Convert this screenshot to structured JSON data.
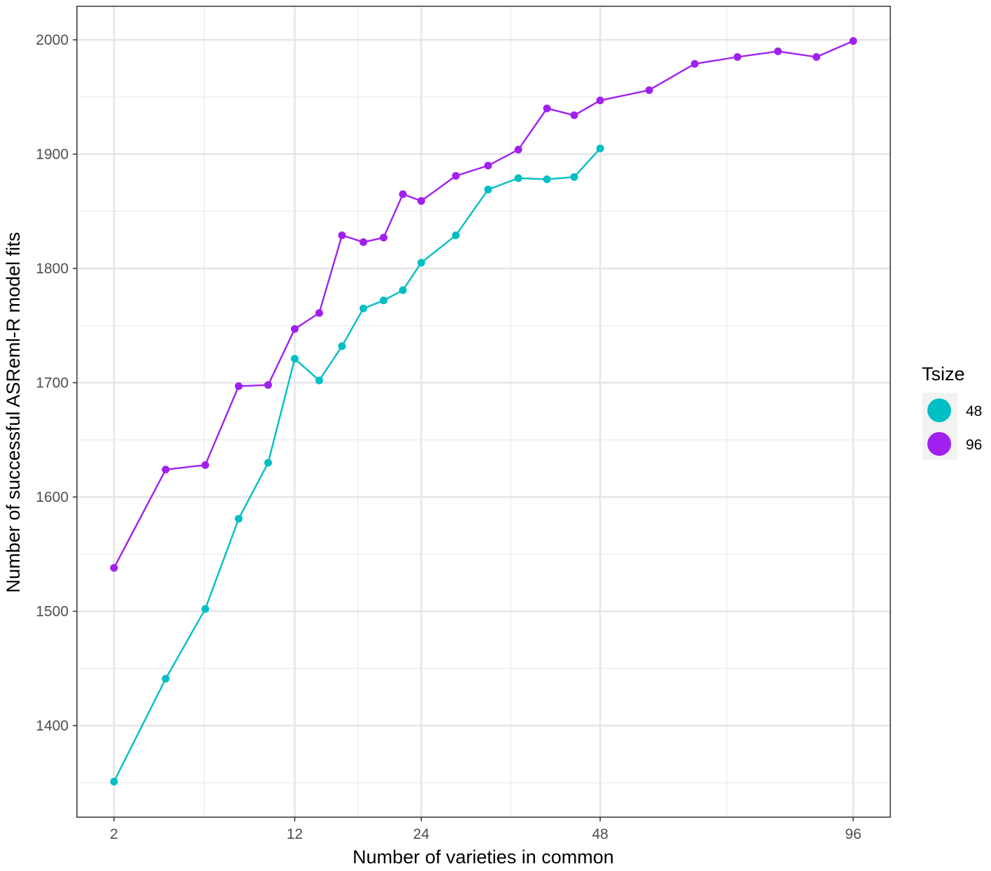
{
  "chart_data": {
    "type": "line",
    "title": "",
    "xlabel": "Number of varieties in common",
    "ylabel": "Number of successful ASReml-R model fits",
    "x_scale": "sqrt",
    "xlim": [
      2,
      96
    ],
    "ylim": [
      1350,
      2000
    ],
    "x_ticks": [
      2,
      12,
      24,
      48,
      96
    ],
    "x_tick_labels": [
      "2",
      "12",
      "24",
      "48",
      "96"
    ],
    "y_ticks": [
      1400,
      1500,
      1600,
      1700,
      1800,
      1900,
      2000
    ],
    "y_tick_labels": [
      "1400",
      "1500",
      "1600",
      "1700",
      "1800",
      "1900",
      "2000"
    ],
    "grid": true,
    "legend": {
      "title": "Tsize",
      "position": "right"
    },
    "series": [
      {
        "name": "48",
        "color": "#00BFC4",
        "x": [
          2,
          4,
          6,
          8,
          10,
          12,
          14,
          16,
          18,
          20,
          22,
          24,
          28,
          32,
          36,
          40,
          44,
          48
        ],
        "y": [
          1351,
          1441,
          1502,
          1581,
          1630,
          1721,
          1702,
          1732,
          1765,
          1772,
          1781,
          1805,
          1829,
          1869,
          1879,
          1878,
          1880,
          1905
        ]
      },
      {
        "name": "96",
        "color": "#A020F0",
        "x": [
          2,
          4,
          6,
          8,
          10,
          12,
          14,
          16,
          18,
          20,
          22,
          24,
          28,
          32,
          36,
          40,
          44,
          48,
          56,
          64,
          72,
          80,
          88,
          96
        ],
        "y": [
          1538,
          1624,
          1628,
          1697,
          1698,
          1747,
          1761,
          1829,
          1823,
          1827,
          1865,
          1859,
          1881,
          1890,
          1904,
          1940,
          1934,
          1947,
          1956,
          1979,
          1985,
          1990,
          1985,
          1999
        ]
      }
    ]
  }
}
